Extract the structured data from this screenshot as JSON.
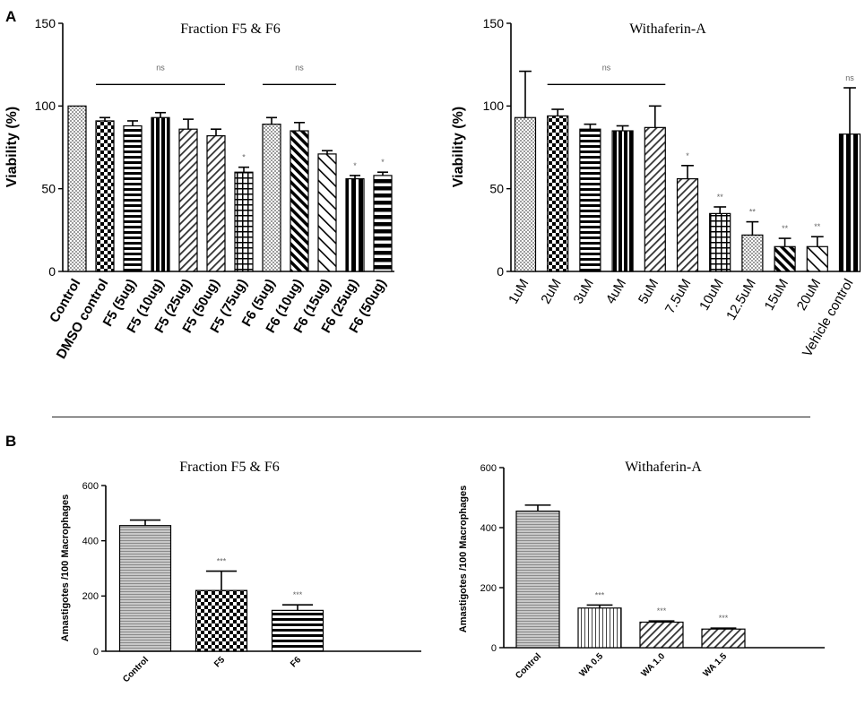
{
  "panels": {
    "a_label": "A",
    "b_label": "B"
  },
  "chart_data": [
    {
      "type": "bar",
      "title": "Fraction F5 & F6",
      "ylabel": "Viability (%)",
      "xlabel": "",
      "ylim": [
        0,
        150
      ],
      "yticks": [
        0,
        50,
        100,
        150
      ],
      "categories": [
        "Control",
        "DMSO control",
        "F5 (5ug)",
        "F5 (10ug)",
        "F5 (25ug)",
        "F5 (50ug)",
        "F5 (75ug)",
        "F6 (5ug)",
        "F6 (10ug)",
        "F6 (15ug)",
        "F6 (25ug)",
        "F6 (50ug)"
      ],
      "values": [
        100,
        91,
        88,
        93,
        86,
        82,
        60,
        89,
        85,
        71,
        56,
        58
      ],
      "errors": [
        0,
        2,
        3,
        3,
        6,
        4,
        3,
        4,
        5,
        2,
        2,
        2
      ],
      "patterns": [
        "dots",
        "checker",
        "hstripes",
        "vthick",
        "diag-right",
        "diag-right",
        "grid",
        "dots",
        "diag-left",
        "diag-left-sparse",
        "vsplit",
        "hbands"
      ],
      "significance": [
        "",
        "",
        "",
        "",
        "",
        "",
        "*",
        "",
        "",
        "",
        "*",
        "*"
      ],
      "brackets": [
        {
          "from": 1,
          "to": 5,
          "y": 113,
          "label": "ns"
        },
        {
          "from": 7,
          "to": 9,
          "y": 113,
          "label": "ns"
        }
      ]
    },
    {
      "type": "bar",
      "title": "Withaferin-A",
      "ylabel": "Viability (%)",
      "xlabel": "",
      "ylim": [
        0,
        150
      ],
      "yticks": [
        0,
        50,
        100,
        150
      ],
      "categories": [
        "1uM",
        "2uM",
        "3uM",
        "4uM",
        "5uM",
        "7.5uM",
        "10uM",
        "12.5uM",
        "15uM",
        "20uM",
        "Vehicle control"
      ],
      "values": [
        93,
        94,
        86,
        85,
        87,
        56,
        35,
        22,
        15,
        15,
        83
      ],
      "errors": [
        28,
        4,
        3,
        3,
        13,
        8,
        4,
        8,
        5,
        6,
        28
      ],
      "patterns": [
        "dots",
        "checker",
        "hstripes",
        "vthick",
        "diag-right",
        "diag-right",
        "grid",
        "dots",
        "diag-left",
        "diag-left-sparse",
        "vsplit"
      ],
      "significance": [
        "",
        "",
        "",
        "",
        "",
        "*",
        "**",
        "**",
        "**",
        "**",
        "ns"
      ],
      "brackets": [
        {
          "from": 1,
          "to": 4,
          "y": 113,
          "label": "ns"
        }
      ]
    },
    {
      "type": "bar",
      "title": "Fraction F5 & F6",
      "ylabel": "Amastigotes /100 Macrophages",
      "xlabel": "",
      "ylim": [
        0,
        600
      ],
      "yticks": [
        0,
        200,
        400,
        600
      ],
      "categories": [
        "Control",
        "F5",
        "F6"
      ],
      "values": [
        455,
        220,
        148
      ],
      "errors": [
        20,
        70,
        20
      ],
      "patterns": [
        "hfine",
        "checker",
        "hstripes"
      ],
      "significance": [
        "",
        "***",
        "***"
      ],
      "brackets": []
    },
    {
      "type": "bar",
      "title": "Withaferin-A",
      "ylabel": "Amastigotes /100 Macrophages",
      "xlabel": "",
      "ylim": [
        0,
        600
      ],
      "yticks": [
        0,
        200,
        400,
        600
      ],
      "categories": [
        "Control",
        "WA 0.5",
        "WA 1.0",
        "WA 1.5"
      ],
      "values": [
        455,
        132,
        85,
        62
      ],
      "errors": [
        20,
        10,
        4,
        3
      ],
      "patterns": [
        "hfine",
        "vstripes",
        "diag-right",
        "diag-right"
      ],
      "significance": [
        "",
        "***",
        "***",
        "***"
      ],
      "brackets": []
    }
  ]
}
